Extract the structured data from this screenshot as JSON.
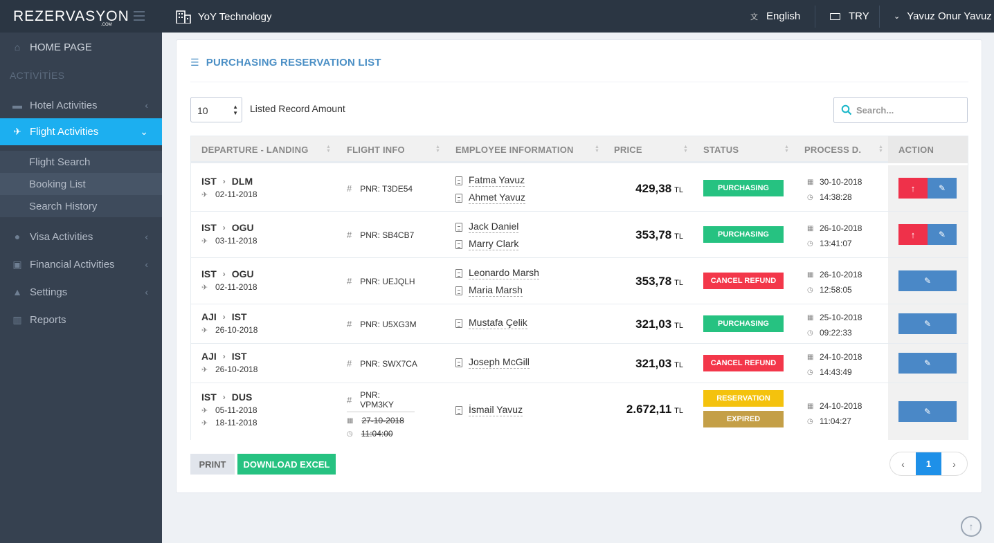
{
  "brand": {
    "logo": "REZERVASYON",
    "logo_sub": ".COM"
  },
  "sidebar": {
    "home": "HOME PAGE",
    "heading": "ACTİVİTİES",
    "items": [
      {
        "label": "Hotel Activities",
        "icon": "bed-icon"
      },
      {
        "label": "Flight Activities",
        "icon": "plane-icon"
      },
      {
        "label": "Visa Activities",
        "icon": "globe-icon"
      },
      {
        "label": "Financial Activities",
        "icon": "money-icon"
      },
      {
        "label": "Settings",
        "icon": "bell-icon"
      },
      {
        "label": "Reports",
        "icon": "bar-chart-icon"
      }
    ],
    "subitems": [
      {
        "label": "Flight Search"
      },
      {
        "label": "Booking List"
      },
      {
        "label": "Search History"
      }
    ]
  },
  "topbar": {
    "company": "YoY Technology",
    "language": "English",
    "currency": "TRY",
    "user": "Yavuz Onur Yavuz"
  },
  "page": {
    "title": "PURCHASING RESERVATION LIST",
    "length_value": "10",
    "length_label": "Listed Record Amount",
    "search_placeholder": "Search..."
  },
  "table": {
    "headers": [
      "DEPARTURE - LANDING",
      "FLIGHT INFO",
      "EMPLOYEE INFORMATION",
      "PRICE",
      "STATUS",
      "PROCESS D.",
      "ACTION"
    ],
    "rows": [
      {
        "from": "IST",
        "to": "DLM",
        "dep": "02-11-2018",
        "pnr": "PNR: T3DE54",
        "employees": [
          "Fatma Yavuz",
          "Ahmet Yavuz"
        ],
        "price": "429,38",
        "currency": "TL",
        "status": "PURCHASING",
        "date": "30-10-2018",
        "time": "14:38:28"
      },
      {
        "from": "IST",
        "to": "OGU",
        "dep": "03-11-2018",
        "pnr": "PNR: SB4CB7",
        "employees": [
          "Jack Daniel",
          "Marry Clark"
        ],
        "price": "353,78",
        "currency": "TL",
        "status": "PURCHASING",
        "date": "26-10-2018",
        "time": "13:41:07"
      },
      {
        "from": "IST",
        "to": "OGU",
        "dep": "02-11-2018",
        "pnr": "PNR: UEJQLH",
        "employees": [
          "Leonardo Marsh",
          "Maria Marsh"
        ],
        "price": "353,78",
        "currency": "TL",
        "status": "CANCEL REFUND",
        "date": "26-10-2018",
        "time": "12:58:05"
      },
      {
        "from": "AJI",
        "to": "IST",
        "dep": "26-10-2018",
        "pnr": "PNR: U5XG3M",
        "employees": [
          "Mustafa Çelik"
        ],
        "price": "321,03",
        "currency": "TL",
        "status": "PURCHASING",
        "date": "25-10-2018",
        "time": "09:22:33"
      },
      {
        "from": "AJI",
        "to": "IST",
        "dep": "26-10-2018",
        "pnr": "PNR: SWX7CA",
        "employees": [
          "Joseph McGill"
        ],
        "price": "321,03",
        "currency": "TL",
        "status": "CANCEL REFUND",
        "date": "24-10-2018",
        "time": "14:43:49"
      },
      {
        "from": "IST",
        "to": "DUS",
        "dep": "05-11-2018",
        "ret": "18-11-2018",
        "pnr": "PNR: VPM3KY",
        "opt_date": "27-10-2018",
        "opt_time": "11:04:00",
        "employees": [
          "İsmail Yavuz"
        ],
        "price": "2.672,11",
        "currency": "TL",
        "status": "RESERVATION",
        "status2": "EXPIRED",
        "date": "24-10-2018",
        "time": "11:04:27"
      }
    ]
  },
  "footer": {
    "print": "PRINT",
    "excel": "DOWNLOAD EXCEL",
    "page": "1"
  },
  "colors": {
    "sidebar": "#364150",
    "topbar": "#2b3643",
    "accent": "#1caff0",
    "green": "#26c281",
    "red": "#f3374a",
    "blue": "#4a88c7",
    "yellow": "#f4c20d",
    "gold": "#c49f47"
  }
}
